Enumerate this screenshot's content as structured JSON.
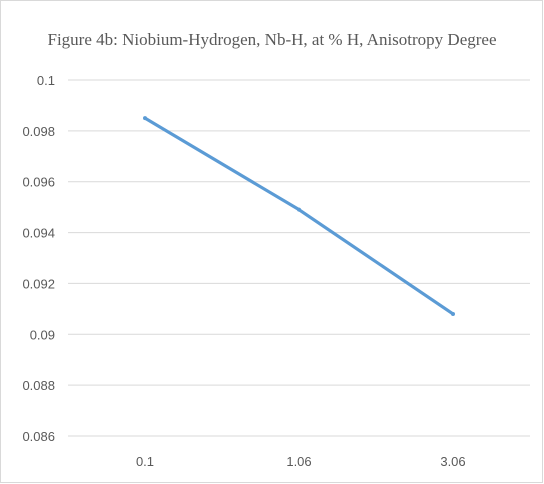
{
  "chart_data": {
    "type": "line",
    "title": "Figure 4b: Niobium-Hydrogen, Nb-H, at % H, Anisotropy Degree",
    "categories": [
      "0.1",
      "1.06",
      "3.06"
    ],
    "series": [
      {
        "values": [
          0.0985,
          0.0949,
          0.0908
        ],
        "color": "#5b9bd5"
      }
    ],
    "ylim": [
      0.086,
      0.1
    ],
    "yticks": [
      "0.1",
      "0.098",
      "0.096",
      "0.094",
      "0.092",
      "0.09",
      "0.088",
      "0.086"
    ],
    "grid": true,
    "legend": "none",
    "colors": {
      "line": "#5b9bd5",
      "grid": "#d9d9d9",
      "text": "#595959"
    }
  }
}
